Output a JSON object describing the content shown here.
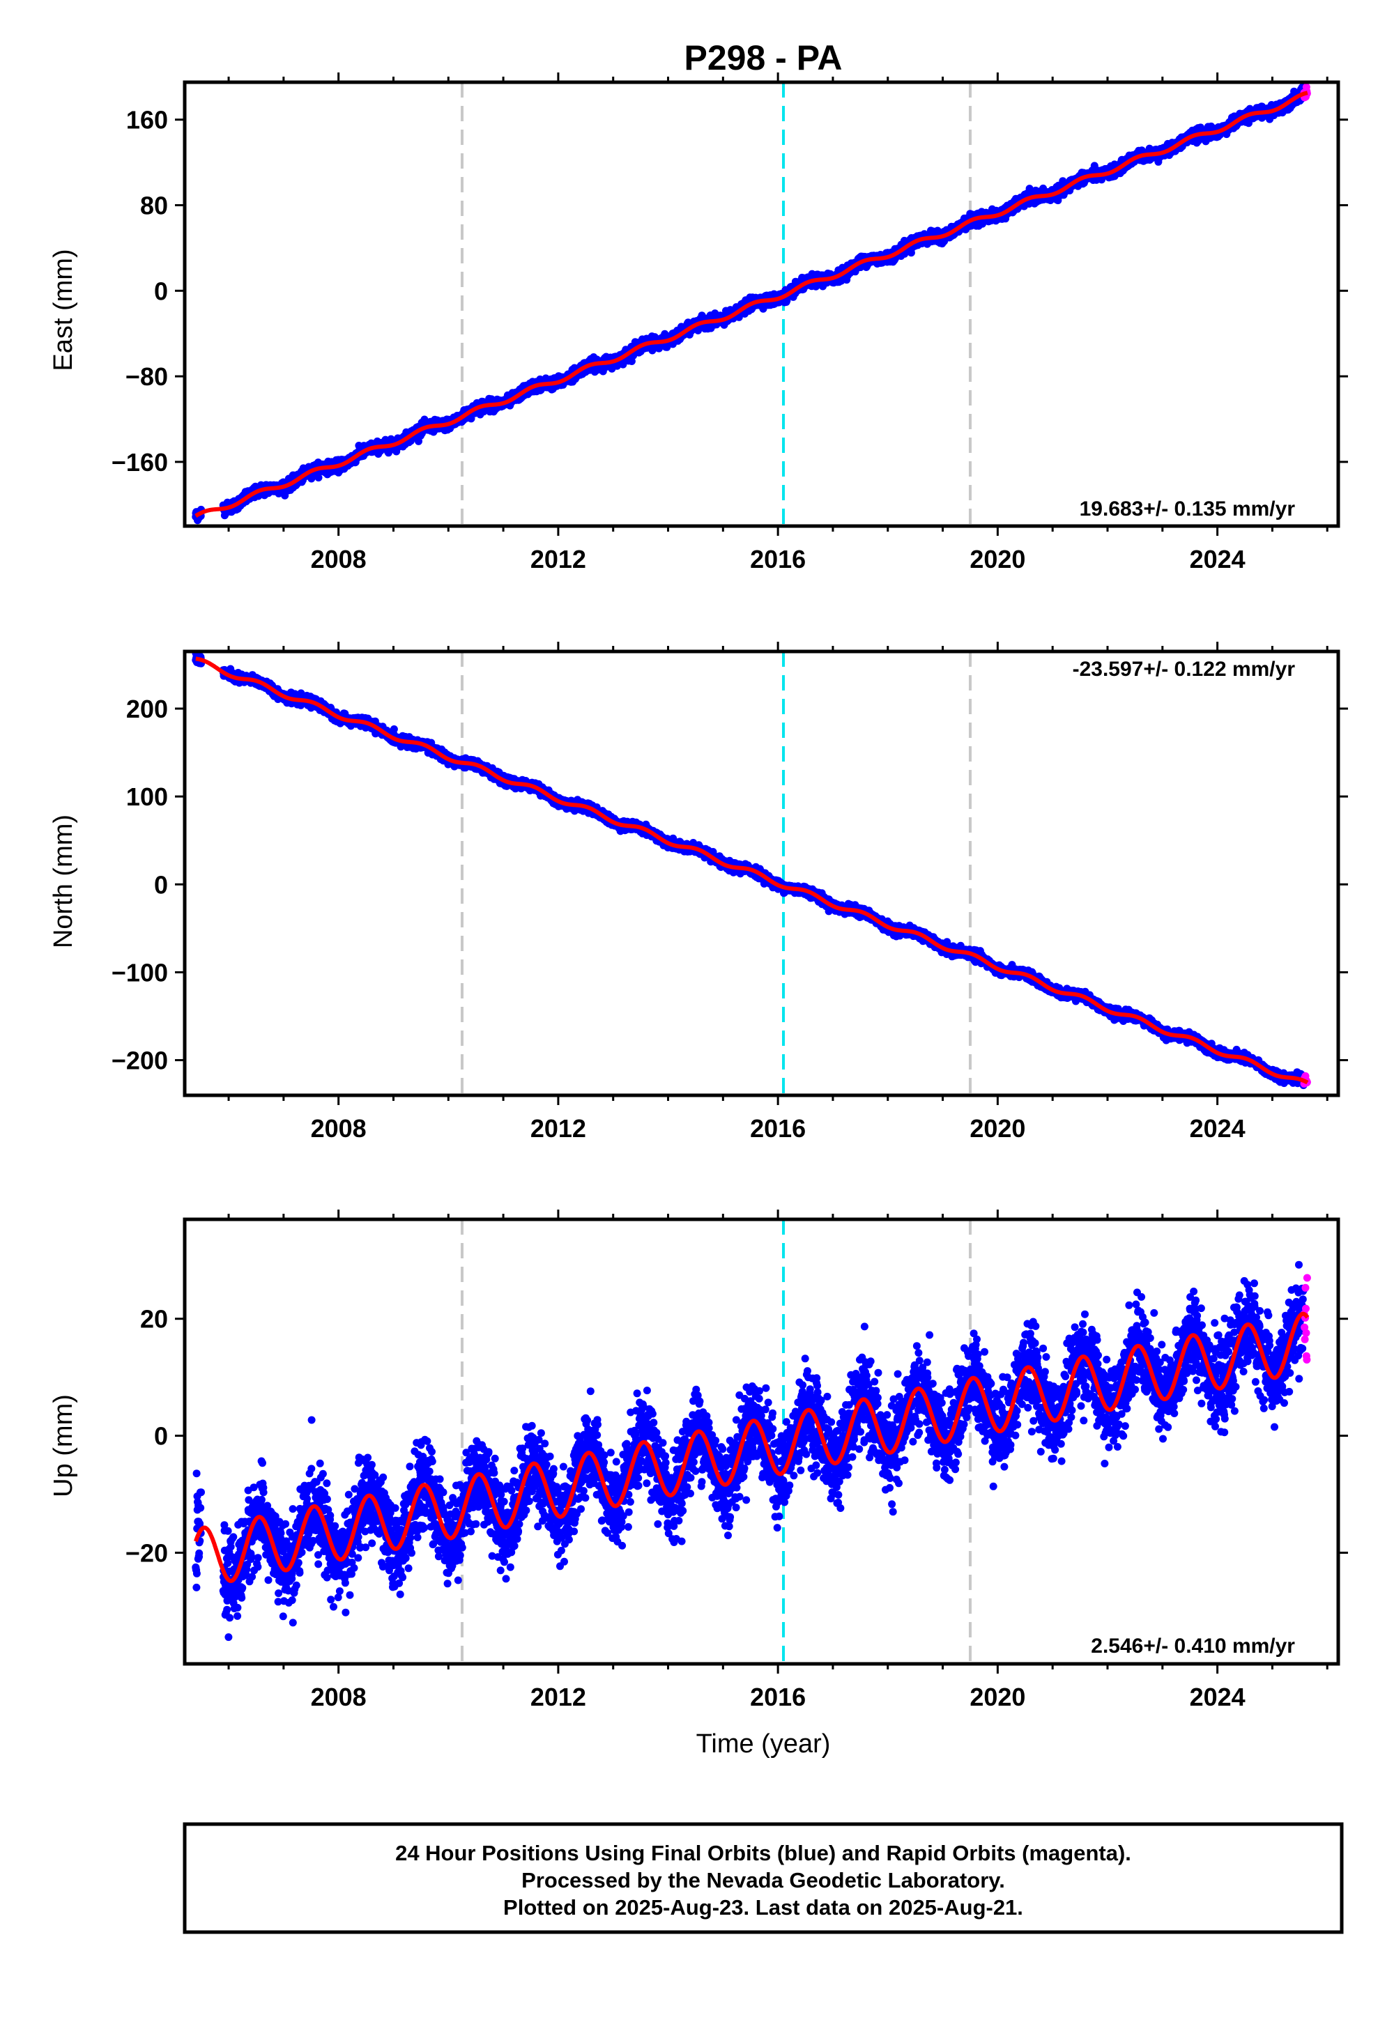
{
  "title": "P298 - PA",
  "colors": {
    "final": "#0000ff",
    "rapid": "#ff00ff",
    "model": "#ff0000",
    "event_line": "#c8c8c8",
    "antenna_line": "#00e5ee"
  },
  "chart_data": [
    {
      "type": "scatter",
      "component": "East",
      "ylabel": "East (mm)",
      "xlabel": "",
      "xlim": [
        2005.2,
        2026.2
      ],
      "ylim": [
        -220,
        195
      ],
      "xticks": [
        2008,
        2012,
        2016,
        2020,
        2024
      ],
      "yticks": [
        -160,
        -80,
        0,
        80,
        160
      ],
      "rate_label": "19.683+/- 0.135 mm/yr",
      "x_start": 2005.4,
      "x_end": 2025.64,
      "start_value": -212,
      "end_value": 183,
      "seasonal_amplitude": 2.5,
      "scatter_sd": 2.5,
      "event_lines": [
        2010.25,
        2019.5
      ],
      "antenna_lines": [
        2016.1
      ],
      "series": [
        {
          "name": "Final Orbits",
          "color": "#0000ff"
        },
        {
          "name": "Rapid Orbits",
          "color": "#ff00ff"
        },
        {
          "name": "Model",
          "color": "#ff0000"
        }
      ]
    },
    {
      "type": "scatter",
      "component": "North",
      "ylabel": "North (mm)",
      "xlabel": "",
      "xlim": [
        2005.2,
        2026.2
      ],
      "ylim": [
        -240,
        265
      ],
      "xticks": [
        2008,
        2012,
        2016,
        2020,
        2024
      ],
      "yticks": [
        -200,
        -100,
        0,
        100,
        200
      ],
      "rate_label": "-23.597+/- 0.122 mm/yr",
      "x_start": 2005.4,
      "x_end": 2025.64,
      "start_value": 255,
      "end_value": -228,
      "seasonal_amplitude": 3,
      "scatter_sd": 2.5,
      "event_lines": [
        2010.25,
        2019.5
      ],
      "antenna_lines": [
        2016.1
      ],
      "series": [
        {
          "name": "Final Orbits",
          "color": "#0000ff"
        },
        {
          "name": "Rapid Orbits",
          "color": "#ff00ff"
        },
        {
          "name": "Model",
          "color": "#ff0000"
        }
      ]
    },
    {
      "type": "scatter",
      "component": "Up",
      "ylabel": "Up (mm)",
      "xlabel": "Time (year)",
      "xlim": [
        2005.2,
        2026.2
      ],
      "ylim": [
        -39,
        37
      ],
      "xticks": [
        2008,
        2012,
        2016,
        2020,
        2024
      ],
      "yticks": [
        -20,
        0,
        20
      ],
      "rate_label": "2.546+/- 0.410 mm/yr",
      "x_start": 2005.4,
      "x_end": 2025.64,
      "start_value": -21,
      "end_value": 16,
      "seasonal_amplitude": 5,
      "scatter_sd": 3.5,
      "event_lines": [
        2010.25,
        2019.5
      ],
      "antenna_lines": [
        2016.1
      ],
      "series": [
        {
          "name": "Final Orbits",
          "color": "#0000ff"
        },
        {
          "name": "Rapid Orbits",
          "color": "#ff00ff"
        },
        {
          "name": "Model",
          "color": "#ff0000"
        }
      ]
    }
  ],
  "footer": {
    "line1": "24 Hour Positions Using Final Orbits (blue) and Rapid Orbits (magenta).",
    "line2": "Processed by the Nevada Geodetic Laboratory.",
    "line3": "Plotted on 2025-Aug-23. Last data on 2025-Aug-21."
  }
}
